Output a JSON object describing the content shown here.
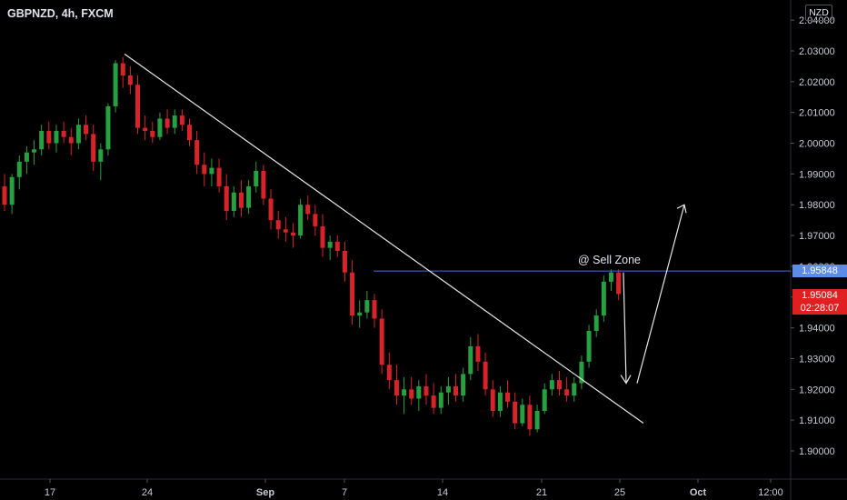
{
  "header": {
    "symbol": "GBPNZD, 4h, FXCM"
  },
  "currency_button": "NZD",
  "annotation": {
    "text": "@ Sell Zone"
  },
  "price_labels": {
    "level": "1.95848",
    "last": "1.95084",
    "countdown": "02:28:07"
  },
  "colors": {
    "background": "#000000",
    "up": "#26a041",
    "down": "#d8232a",
    "level_line": "#4a6fd8",
    "level_badge": "#5b8de8",
    "last_badge": "#e02020",
    "trendline": "#e6e6e6"
  },
  "chart_data": {
    "type": "candlestick",
    "ylim": [
      1.895,
      2.045
    ],
    "yticks": [
      "1.90000",
      "1.91000",
      "1.92000",
      "1.93000",
      "1.94000",
      "1.95000",
      "1.96000",
      "1.97000",
      "1.98000",
      "1.99000",
      "2.00000",
      "2.01000",
      "2.02000",
      "2.03000",
      "2.04000"
    ],
    "xticks": [
      "17",
      "24",
      "Sep",
      "7",
      "14",
      "21",
      "25",
      "Oct",
      "12:00"
    ],
    "horizontal_level": 1.95848,
    "trendline": [
      [
        0,
        2.029
      ],
      [
        97,
        1.909
      ]
    ],
    "arrow_down": [
      1.958,
      1.922
    ],
    "arrow_up": [
      1.922,
      1.98
    ],
    "candles": [
      [
        1.986,
        1.99,
        1.978,
        1.98
      ],
      [
        1.98,
        1.99,
        1.977,
        1.989
      ],
      [
        1.989,
        1.996,
        1.985,
        1.994
      ],
      [
        1.994,
        1.999,
        1.99,
        1.997
      ],
      [
        1.997,
        2.001,
        1.993,
        1.998
      ],
      [
        1.998,
        2.006,
        1.996,
        2.004
      ],
      [
        2.004,
        2.007,
        1.998,
        2.0
      ],
      [
        2.0,
        2.006,
        1.997,
        2.004
      ],
      [
        2.004,
        2.007,
        2.0,
        2.002
      ],
      [
        2.002,
        2.005,
        1.996,
        2.0
      ],
      [
        2.0,
        2.008,
        1.998,
        2.006
      ],
      [
        2.006,
        2.009,
        2.001,
        2.003
      ],
      [
        2.003,
        2.006,
        1.991,
        1.994
      ],
      [
        1.994,
        2.0,
        1.988,
        1.998
      ],
      [
        1.998,
        2.013,
        1.996,
        2.012
      ],
      [
        2.012,
        2.027,
        2.01,
        2.026
      ],
      [
        2.026,
        2.028,
        2.018,
        2.022
      ],
      [
        2.022,
        2.025,
        2.016,
        2.019
      ],
      [
        2.019,
        2.022,
        2.003,
        2.005
      ],
      [
        2.005,
        2.009,
        2.001,
        2.004
      ],
      [
        2.004,
        2.007,
        2.0,
        2.002
      ],
      [
        2.002,
        2.01,
        2.001,
        2.008
      ],
      [
        2.008,
        2.011,
        2.003,
        2.005
      ],
      [
        2.005,
        2.011,
        2.003,
        2.009
      ],
      [
        2.009,
        2.011,
        2.004,
        2.006
      ],
      [
        2.006,
        2.008,
        1.999,
        2.001
      ],
      [
        2.001,
        2.004,
        1.99,
        1.993
      ],
      [
        1.993,
        1.997,
        1.986,
        1.99
      ],
      [
        1.99,
        1.995,
        1.986,
        1.992
      ],
      [
        1.992,
        1.995,
        1.984,
        1.986
      ],
      [
        1.986,
        1.99,
        1.975,
        1.978
      ],
      [
        1.978,
        1.986,
        1.976,
        1.984
      ],
      [
        1.984,
        1.988,
        1.976,
        1.979
      ],
      [
        1.979,
        1.988,
        1.977,
        1.986
      ],
      [
        1.986,
        1.994,
        1.984,
        1.991
      ],
      [
        1.991,
        1.993,
        1.98,
        1.982
      ],
      [
        1.982,
        1.985,
        1.972,
        1.975
      ],
      [
        1.975,
        1.978,
        1.969,
        1.972
      ],
      [
        1.972,
        1.976,
        1.968,
        1.971
      ],
      [
        1.971,
        1.974,
        1.966,
        1.97
      ],
      [
        1.97,
        1.982,
        1.969,
        1.98
      ],
      [
        1.98,
        1.983,
        1.975,
        1.977
      ],
      [
        1.977,
        1.98,
        1.97,
        1.973
      ],
      [
        1.973,
        1.977,
        1.963,
        1.966
      ],
      [
        1.966,
        1.97,
        1.962,
        1.968
      ],
      [
        1.968,
        1.97,
        1.963,
        1.965
      ],
      [
        1.965,
        1.968,
        1.955,
        1.958
      ],
      [
        1.958,
        1.962,
        1.941,
        1.944
      ],
      [
        1.944,
        1.949,
        1.94,
        1.945
      ],
      [
        1.945,
        1.952,
        1.943,
        1.949
      ],
      [
        1.949,
        1.951,
        1.94,
        1.943
      ],
      [
        1.943,
        1.946,
        1.925,
        1.928
      ],
      [
        1.928,
        1.932,
        1.92,
        1.923
      ],
      [
        1.923,
        1.928,
        1.915,
        1.918
      ],
      [
        1.918,
        1.924,
        1.912,
        1.92
      ],
      [
        1.92,
        1.924,
        1.915,
        1.917
      ],
      [
        1.917,
        1.923,
        1.913,
        1.921
      ],
      [
        1.921,
        1.925,
        1.915,
        1.918
      ],
      [
        1.918,
        1.922,
        1.912,
        1.914
      ],
      [
        1.914,
        1.921,
        1.912,
        1.919
      ],
      [
        1.919,
        1.924,
        1.915,
        1.921
      ],
      [
        1.921,
        1.925,
        1.916,
        1.918
      ],
      [
        1.918,
        1.927,
        1.916,
        1.925
      ],
      [
        1.925,
        1.937,
        1.923,
        1.934
      ],
      [
        1.934,
        1.938,
        1.926,
        1.929
      ],
      [
        1.929,
        1.932,
        1.918,
        1.92
      ],
      [
        1.92,
        1.923,
        1.911,
        1.913
      ],
      [
        1.913,
        1.921,
        1.911,
        1.919
      ],
      [
        1.919,
        1.923,
        1.914,
        1.916
      ],
      [
        1.916,
        1.919,
        1.907,
        1.909
      ],
      [
        1.909,
        1.917,
        1.908,
        1.915
      ],
      [
        1.915,
        1.918,
        1.905,
        1.907
      ],
      [
        1.907,
        1.915,
        1.906,
        1.913
      ],
      [
        1.913,
        1.922,
        1.912,
        1.92
      ],
      [
        1.92,
        1.925,
        1.918,
        1.923
      ],
      [
        1.923,
        1.926,
        1.918,
        1.92
      ],
      [
        1.92,
        1.924,
        1.916,
        1.918
      ],
      [
        1.918,
        1.924,
        1.916,
        1.922
      ],
      [
        1.922,
        1.931,
        1.92,
        1.929
      ],
      [
        1.929,
        1.941,
        1.927,
        1.939
      ],
      [
        1.939,
        1.946,
        1.937,
        1.944
      ],
      [
        1.944,
        1.957,
        1.942,
        1.955
      ],
      [
        1.955,
        1.959,
        1.952,
        1.958
      ],
      [
        1.958,
        1.959,
        1.949,
        1.951
      ]
    ]
  }
}
